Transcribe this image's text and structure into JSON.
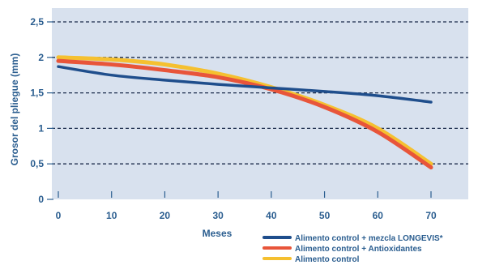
{
  "chart_data": {
    "type": "line",
    "title": "",
    "xlabel": "Meses",
    "ylabel": "Grosor del pliegue (mm)",
    "xlim": [
      0,
      70
    ],
    "ylim": [
      0,
      2.5
    ],
    "x_ticks": [
      0,
      10,
      20,
      30,
      40,
      50,
      60,
      70
    ],
    "x_tick_labels": [
      "0",
      "10",
      "20",
      "30",
      "40",
      "50",
      "60",
      "70"
    ],
    "y_ticks": [
      0,
      0.5,
      1,
      1.5,
      2,
      2.5
    ],
    "y_tick_labels": [
      "0",
      "0,5",
      "1",
      "1,5",
      "2",
      "2,5"
    ],
    "grid": "horizontal-dashed",
    "legend_position": "bottom-right",
    "x": [
      0,
      10,
      20,
      30,
      40,
      50,
      60,
      70
    ],
    "series": [
      {
        "name": "Alimento control + mezcla LONGEVIS*",
        "color": "#1f4e8c",
        "values": [
          1.87,
          1.75,
          1.68,
          1.62,
          1.57,
          1.52,
          1.46,
          1.37
        ]
      },
      {
        "name": "Alimento control + Antioxidantes",
        "color": "#e8553a",
        "values": [
          1.95,
          1.9,
          1.82,
          1.72,
          1.55,
          1.3,
          0.95,
          0.45
        ]
      },
      {
        "name": "Alimento control",
        "color": "#f5c030",
        "values": [
          2.0,
          1.97,
          1.9,
          1.77,
          1.58,
          1.33,
          1.0,
          0.5
        ]
      }
    ]
  }
}
